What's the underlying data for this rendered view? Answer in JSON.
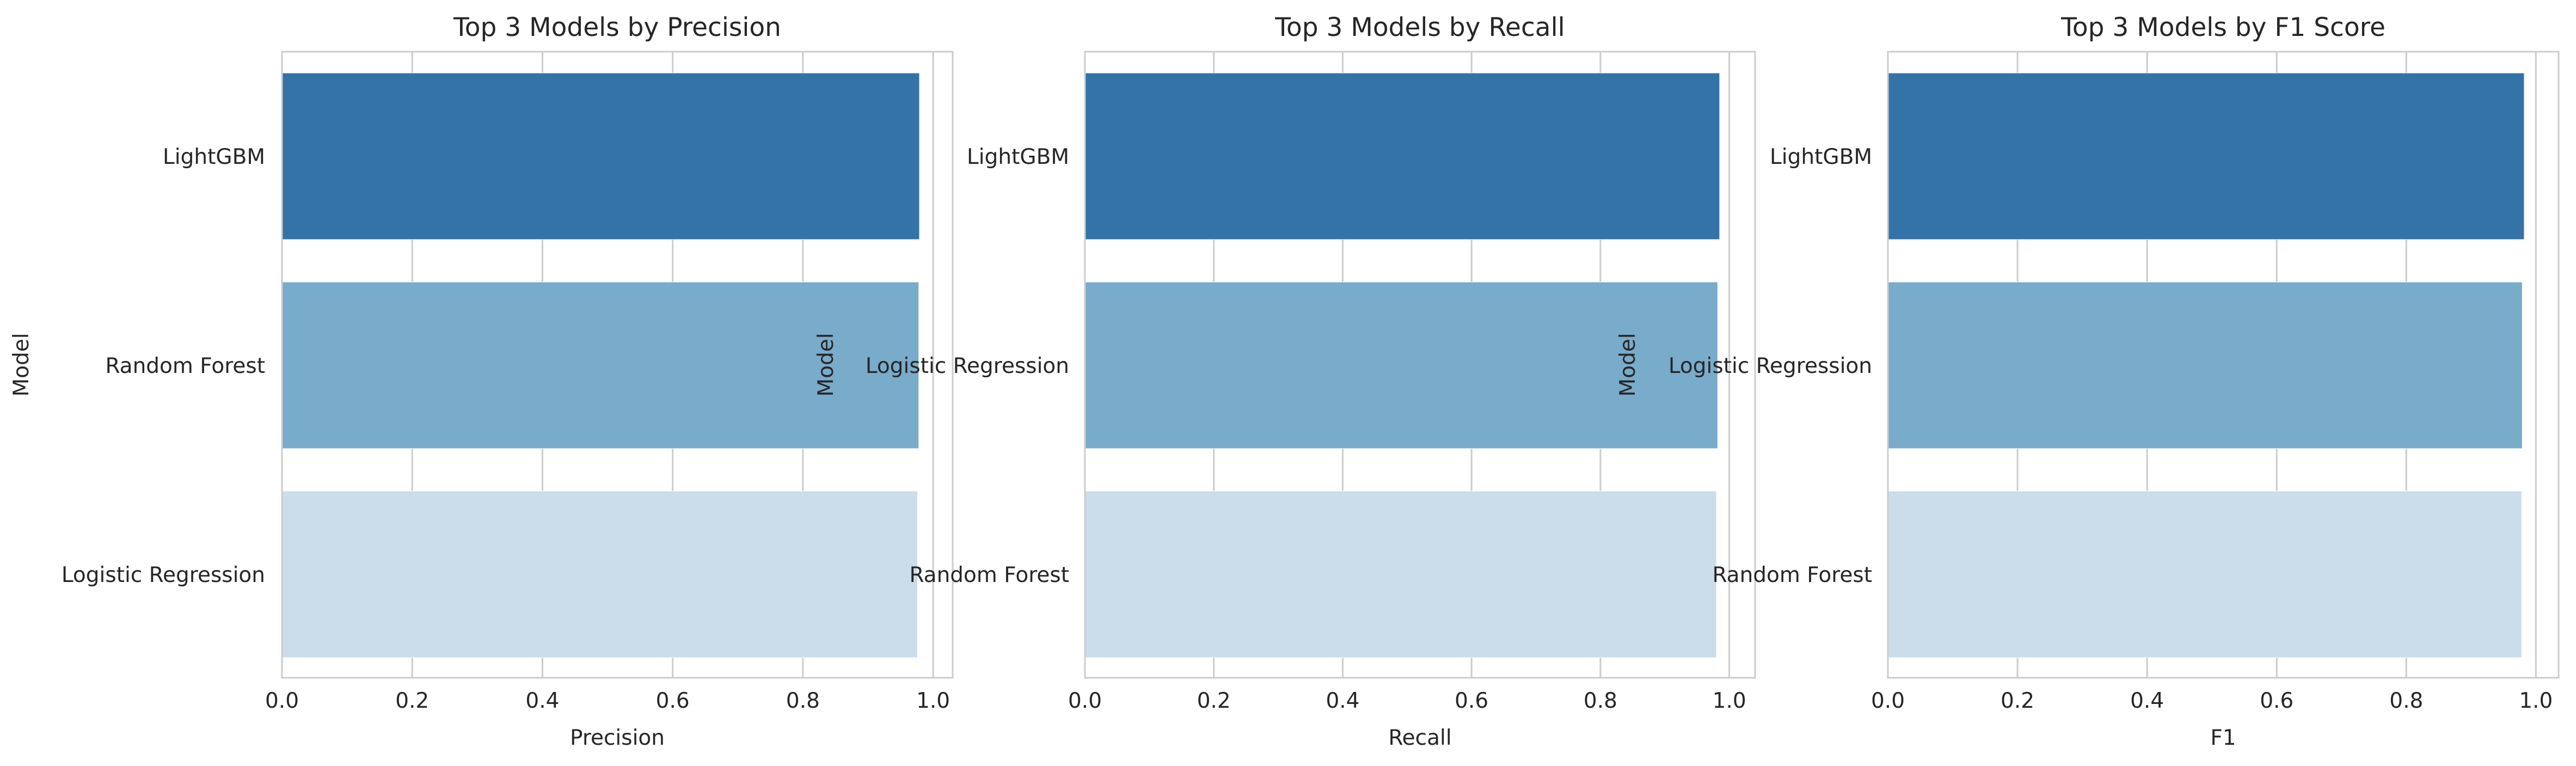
{
  "colors": {
    "bar_colors": [
      "#3473a7",
      "#79abcb",
      "#cbdcea"
    ],
    "grid": "#cccccc",
    "spine": "#cccccc",
    "text": "#262626"
  },
  "chart_data": [
    {
      "type": "bar",
      "orientation": "horizontal",
      "title": "Top 3 Models by Precision",
      "xlabel": "Precision",
      "ylabel": "Model",
      "categories": [
        "LightGBM",
        "Random Forest",
        "Logistic Regression"
      ],
      "values": [
        0.979,
        0.978,
        0.976
      ],
      "xlim": [
        0,
        1.03
      ],
      "xticks": [
        "0.0",
        "0.2",
        "0.4",
        "0.6",
        "0.8",
        "1.0"
      ],
      "grid": true,
      "legend": "none"
    },
    {
      "type": "bar",
      "orientation": "horizontal",
      "title": "Top 3 Models by Recall",
      "xlabel": "Recall",
      "ylabel": "Model",
      "categories": [
        "LightGBM",
        "Logistic Regression",
        "Random Forest"
      ],
      "values": [
        0.985,
        0.982,
        0.98
      ],
      "xlim": [
        0,
        1.04
      ],
      "xticks": [
        "0.0",
        "0.2",
        "0.4",
        "0.6",
        "0.8",
        "1.0"
      ],
      "grid": true,
      "legend": "none"
    },
    {
      "type": "bar",
      "orientation": "horizontal",
      "title": "Top 3 Models by F1 Score",
      "xlabel": "F1",
      "ylabel": "Model",
      "categories": [
        "LightGBM",
        "Logistic Regression",
        "Random Forest"
      ],
      "values": [
        0.982,
        0.979,
        0.978
      ],
      "xlim": [
        0,
        1.035
      ],
      "xticks": [
        "0.0",
        "0.2",
        "0.4",
        "0.6",
        "0.8",
        "1.0"
      ],
      "grid": true,
      "legend": "none"
    }
  ]
}
